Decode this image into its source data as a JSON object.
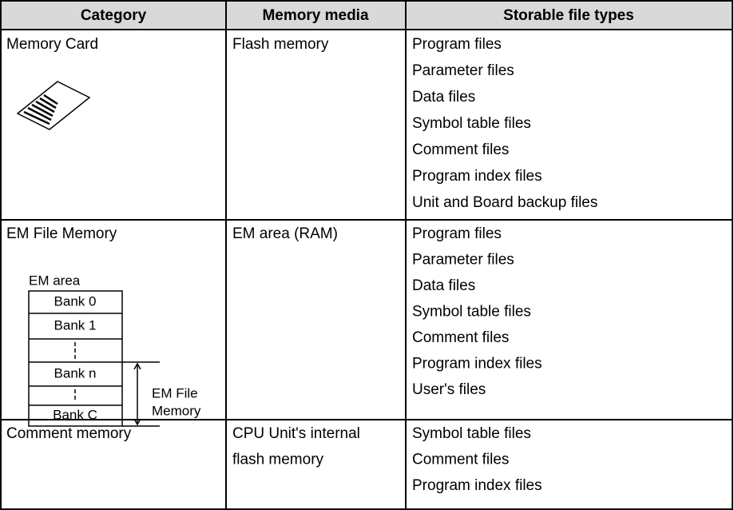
{
  "table": {
    "header": [
      "Category",
      "Memory media",
      "Storable file types"
    ],
    "rows": [
      {
        "category": "Memory Card",
        "media": [
          "Flash memory"
        ],
        "files": [
          "Program files",
          "Parameter files",
          "Data files",
          "Symbol table files",
          "Comment files",
          "Program index files",
          "Unit and Board backup files"
        ]
      },
      {
        "category": "EM File Memory",
        "media": [
          "EM area (RAM)"
        ],
        "files": [
          "Program files",
          "Parameter files",
          "Data files",
          "Symbol table files",
          "Comment files",
          "Program index files",
          "User's files"
        ],
        "diagram": {
          "title": "EM area",
          "banks": [
            "Bank 0",
            "Bank 1",
            "Bank n",
            "Bank C"
          ],
          "bracket_label": [
            "EM File",
            "Memory"
          ]
        }
      },
      {
        "category": "Comment memory",
        "media": [
          "CPU Unit's internal",
          "flash memory"
        ],
        "files": [
          "Symbol table files",
          "Comment files",
          "Program index files"
        ]
      }
    ]
  }
}
